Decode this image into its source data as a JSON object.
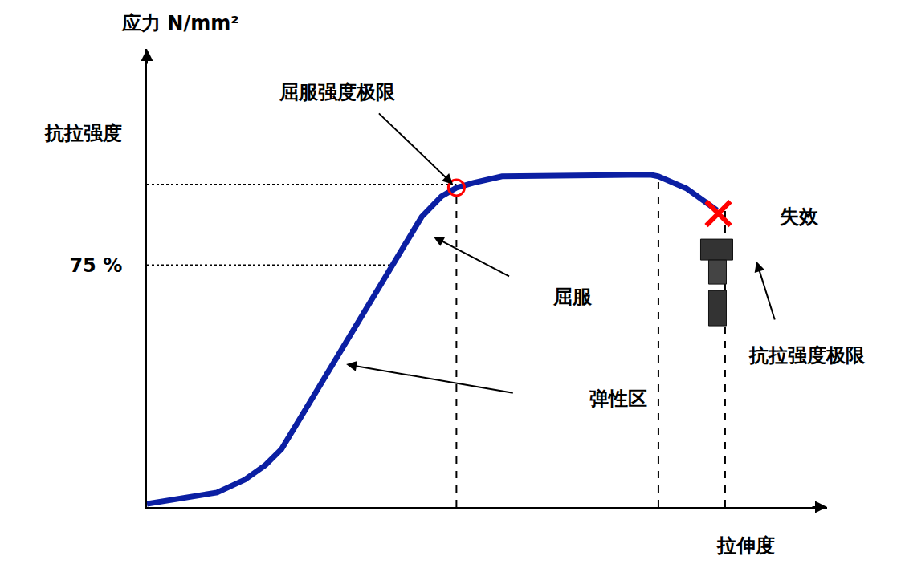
{
  "chart_data": {
    "type": "line",
    "y_label": "应力 N/mm²",
    "x_label": "拉伸度",
    "x": [
      0,
      10.3,
      14.4,
      17.4,
      19.8,
      40.4,
      43.3,
      45.5,
      48,
      52.2,
      74,
      75.2,
      79.3,
      83.8
    ],
    "values": [
      1,
      4.5,
      8.5,
      13,
      18,
      90,
      96.3,
      99,
      100.5,
      102.5,
      103,
      102.5,
      98.8,
      92
    ],
    "color": "#0b1fa3",
    "xlim": [
      0,
      100
    ],
    "ylim": [
      0,
      142
    ],
    "yticks": [
      {
        "value": 75,
        "label": "75 %"
      },
      {
        "value": 116,
        "label": "抗拉强度"
      }
    ],
    "tick_labels": "y",
    "grid": false,
    "guides": {
      "vertical": [
        [
          45.5,
          100
        ],
        [
          75.2,
          102.5
        ],
        [
          85,
          92
        ]
      ],
      "horizontal": [
        [
          100,
          45.5
        ],
        [
          75,
          36
        ]
      ]
    },
    "annotations": [
      {
        "text": "屈服强度极限",
        "x": 45.5,
        "y": 99
      },
      {
        "text": "屈服",
        "x": 41.5,
        "y": 84.5
      },
      {
        "text": "弹性区",
        "x": 28.6,
        "y": 44.5
      },
      {
        "text": "失效",
        "x": 84,
        "y": 91
      },
      {
        "text": "抗拉强度极限",
        "x": 89.4,
        "y": 77.6
      }
    ]
  }
}
